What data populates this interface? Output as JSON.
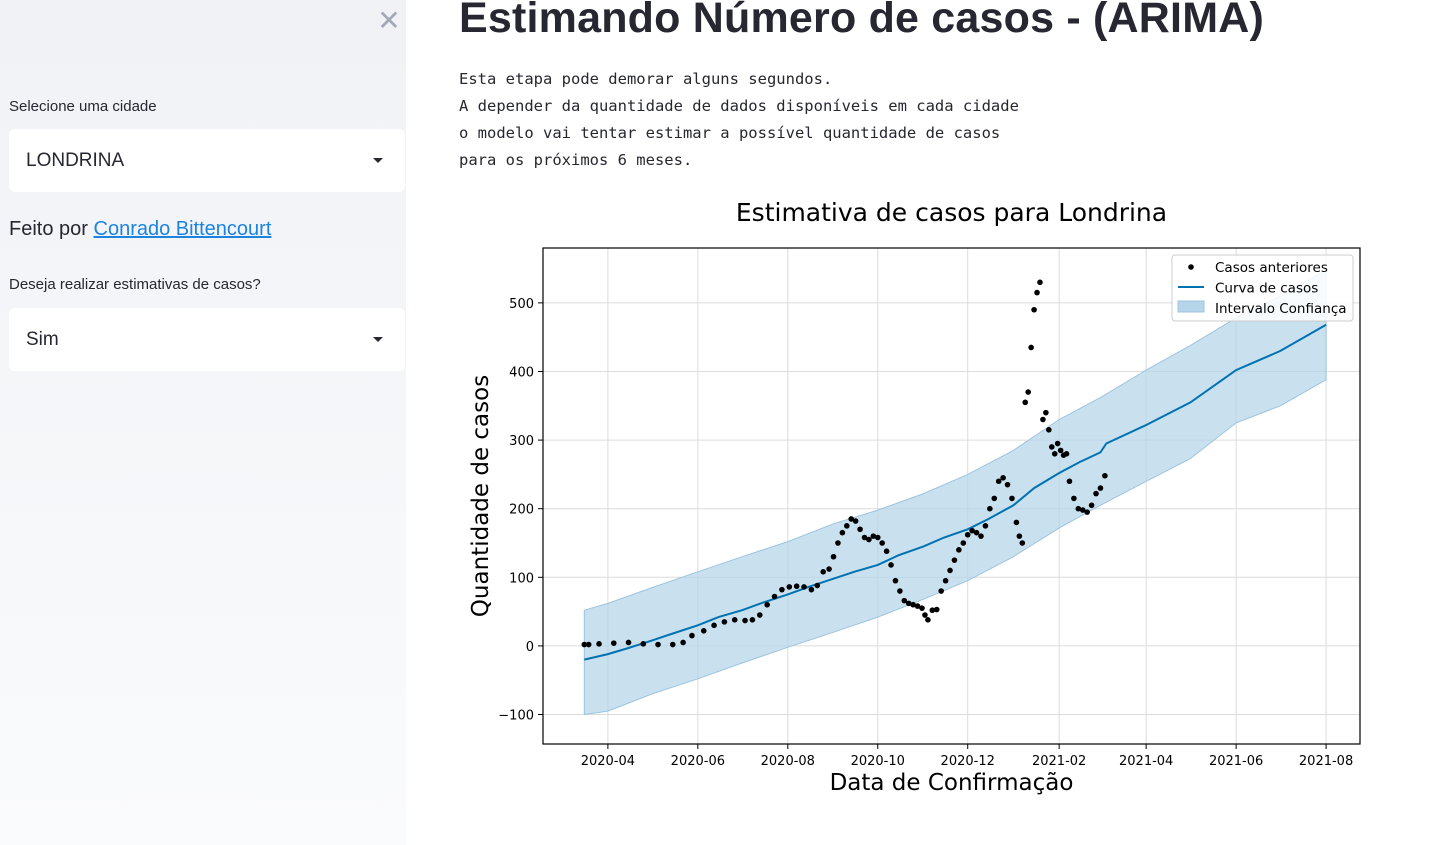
{
  "sidebar": {
    "close_icon": "✕",
    "city_label": "Selecione uma cidade",
    "city_value": "LONDRINA",
    "made_by_prefix": "Feito por",
    "made_by_link": "Conrado Bittencourt",
    "estimate_label": "Deseja realizar estimativas de casos?",
    "estimate_value": "Sim"
  },
  "main": {
    "title": "Estimando Número de casos - (ARIMA)",
    "description": [
      "Esta etapa pode demorar alguns segundos.",
      "A depender da quantidade de dados disponíveis em cada cidade",
      "o modelo vai tentar estimar a possível quantidade de casos",
      "para os próximos 6 meses."
    ]
  },
  "chart_data": {
    "type": "line",
    "title": "Estimativa de casos para Londrina",
    "xlabel": "Data de Confirmação",
    "ylabel": "Quantidade de casos",
    "xlim": [
      "2020-02-17",
      "2021-08-24"
    ],
    "ylim": [
      -143,
      580
    ],
    "x_ticks": [
      "2020-04",
      "2020-06",
      "2020-08",
      "2020-10",
      "2020-12",
      "2021-02",
      "2021-04",
      "2021-06",
      "2021-08"
    ],
    "y_ticks": [
      -100,
      0,
      100,
      200,
      300,
      400,
      500
    ],
    "grid": true,
    "legend_position": "top-right",
    "legend": [
      "Casos anteriores",
      "Curva de casos",
      "Intervalo Confiança"
    ],
    "colors": {
      "points": "#000000",
      "curve": "#0072b2",
      "band": "#b7d5ea"
    },
    "observed": [
      [
        "2020-03-16",
        2
      ],
      [
        "2020-03-19",
        2
      ],
      [
        "2020-03-26",
        3
      ],
      [
        "2020-04-05",
        4
      ],
      [
        "2020-04-15",
        5
      ],
      [
        "2020-04-25",
        3
      ],
      [
        "2020-05-05",
        2
      ],
      [
        "2020-05-15",
        2
      ],
      [
        "2020-05-22",
        5
      ],
      [
        "2020-05-28",
        15
      ],
      [
        "2020-06-05",
        22
      ],
      [
        "2020-06-12",
        30
      ],
      [
        "2020-06-19",
        35
      ],
      [
        "2020-06-26",
        38
      ],
      [
        "2020-07-03",
        37
      ],
      [
        "2020-07-08",
        38
      ],
      [
        "2020-07-13",
        45
      ],
      [
        "2020-07-18",
        60
      ],
      [
        "2020-07-23",
        72
      ],
      [
        "2020-07-28",
        82
      ],
      [
        "2020-08-02",
        86
      ],
      [
        "2020-08-07",
        87
      ],
      [
        "2020-08-12",
        86
      ],
      [
        "2020-08-17",
        82
      ],
      [
        "2020-08-21",
        88
      ],
      [
        "2020-08-25",
        108
      ],
      [
        "2020-08-29",
        112
      ],
      [
        "2020-09-01",
        130
      ],
      [
        "2020-09-04",
        150
      ],
      [
        "2020-09-07",
        165
      ],
      [
        "2020-09-10",
        175
      ],
      [
        "2020-09-13",
        185
      ],
      [
        "2020-09-16",
        182
      ],
      [
        "2020-09-19",
        170
      ],
      [
        "2020-09-22",
        158
      ],
      [
        "2020-09-25",
        155
      ],
      [
        "2020-09-28",
        160
      ],
      [
        "2020-10-01",
        158
      ],
      [
        "2020-10-04",
        150
      ],
      [
        "2020-10-07",
        138
      ],
      [
        "2020-10-10",
        118
      ],
      [
        "2020-10-13",
        95
      ],
      [
        "2020-10-16",
        80
      ],
      [
        "2020-10-19",
        66
      ],
      [
        "2020-10-22",
        62
      ],
      [
        "2020-10-25",
        60
      ],
      [
        "2020-10-28",
        58
      ],
      [
        "2020-10-31",
        55
      ],
      [
        "2020-11-02",
        45
      ],
      [
        "2020-11-04",
        38
      ],
      [
        "2020-11-07",
        52
      ],
      [
        "2020-11-10",
        53
      ],
      [
        "2020-11-13",
        80
      ],
      [
        "2020-11-16",
        95
      ],
      [
        "2020-11-19",
        110
      ],
      [
        "2020-11-22",
        125
      ],
      [
        "2020-11-25",
        140
      ],
      [
        "2020-11-28",
        150
      ],
      [
        "2020-12-01",
        162
      ],
      [
        "2020-12-04",
        168
      ],
      [
        "2020-12-07",
        165
      ],
      [
        "2020-12-10",
        160
      ],
      [
        "2020-12-13",
        175
      ],
      [
        "2020-12-16",
        200
      ],
      [
        "2020-12-19",
        215
      ],
      [
        "2020-12-22",
        240
      ],
      [
        "2020-12-25",
        245
      ],
      [
        "2020-12-28",
        235
      ],
      [
        "2020-12-31",
        215
      ],
      [
        "2021-01-03",
        180
      ],
      [
        "2021-01-05",
        160
      ],
      [
        "2021-01-07",
        150
      ],
      [
        "2021-01-09",
        355
      ],
      [
        "2021-01-11",
        370
      ],
      [
        "2021-01-13",
        435
      ],
      [
        "2021-01-15",
        490
      ],
      [
        "2021-01-17",
        515
      ],
      [
        "2021-01-19",
        530
      ],
      [
        "2021-01-21",
        330
      ],
      [
        "2021-01-23",
        340
      ],
      [
        "2021-01-25",
        315
      ],
      [
        "2021-01-27",
        290
      ],
      [
        "2021-01-29",
        280
      ],
      [
        "2021-01-31",
        295
      ],
      [
        "2021-02-02",
        285
      ],
      [
        "2021-02-04",
        278
      ],
      [
        "2021-02-06",
        280
      ],
      [
        "2021-02-08",
        240
      ],
      [
        "2021-02-11",
        215
      ],
      [
        "2021-02-14",
        200
      ],
      [
        "2021-02-17",
        198
      ],
      [
        "2021-02-20",
        195
      ],
      [
        "2021-02-23",
        205
      ],
      [
        "2021-02-26",
        222
      ],
      [
        "2021-03-01",
        230
      ],
      [
        "2021-03-04",
        248
      ]
    ],
    "curve": [
      [
        "2020-03-16",
        -20
      ],
      [
        "2020-04-01",
        -12
      ],
      [
        "2020-04-15",
        -3
      ],
      [
        "2020-05-01",
        8
      ],
      [
        "2020-05-15",
        18
      ],
      [
        "2020-06-01",
        30
      ],
      [
        "2020-06-15",
        42
      ],
      [
        "2020-07-01",
        52
      ],
      [
        "2020-07-15",
        63
      ],
      [
        "2020-08-01",
        75
      ],
      [
        "2020-08-15",
        86
      ],
      [
        "2020-09-01",
        98
      ],
      [
        "2020-09-15",
        108
      ],
      [
        "2020-10-01",
        118
      ],
      [
        "2020-10-15",
        132
      ],
      [
        "2020-11-01",
        145
      ],
      [
        "2020-11-15",
        158
      ],
      [
        "2020-12-01",
        170
      ],
      [
        "2020-12-15",
        185
      ],
      [
        "2021-01-01",
        205
      ],
      [
        "2021-01-15",
        230
      ],
      [
        "2021-02-01",
        252
      ],
      [
        "2021-02-15",
        268
      ],
      [
        "2021-03-01",
        282
      ],
      [
        "2021-03-05",
        295
      ],
      [
        "2021-04-01",
        322
      ],
      [
        "2021-05-01",
        355
      ],
      [
        "2021-06-01",
        402
      ],
      [
        "2021-07-01",
        430
      ],
      [
        "2021-08-01",
        468
      ]
    ],
    "band_lower": [
      [
        "2020-03-16",
        -100
      ],
      [
        "2020-04-01",
        -95
      ],
      [
        "2020-05-01",
        -70
      ],
      [
        "2020-06-01",
        -48
      ],
      [
        "2020-07-01",
        -25
      ],
      [
        "2020-08-01",
        -2
      ],
      [
        "2020-09-01",
        20
      ],
      [
        "2020-10-01",
        42
      ],
      [
        "2020-11-01",
        68
      ],
      [
        "2020-12-01",
        95
      ],
      [
        "2021-01-01",
        130
      ],
      [
        "2021-02-01",
        172
      ],
      [
        "2021-03-01",
        205
      ],
      [
        "2021-04-01",
        240
      ],
      [
        "2021-05-01",
        273
      ],
      [
        "2021-06-01",
        325
      ],
      [
        "2021-07-01",
        350
      ],
      [
        "2021-08-01",
        388
      ]
    ],
    "band_upper": [
      [
        "2020-03-16",
        52
      ],
      [
        "2020-04-01",
        62
      ],
      [
        "2020-05-01",
        85
      ],
      [
        "2020-06-01",
        108
      ],
      [
        "2020-07-01",
        130
      ],
      [
        "2020-08-01",
        152
      ],
      [
        "2020-09-01",
        178
      ],
      [
        "2020-10-01",
        198
      ],
      [
        "2020-11-01",
        222
      ],
      [
        "2020-12-01",
        250
      ],
      [
        "2021-01-01",
        285
      ],
      [
        "2021-02-01",
        330
      ],
      [
        "2021-03-01",
        362
      ],
      [
        "2021-04-01",
        402
      ],
      [
        "2021-05-01",
        438
      ],
      [
        "2021-06-01",
        478
      ],
      [
        "2021-07-01",
        510
      ],
      [
        "2021-08-01",
        548
      ]
    ]
  }
}
